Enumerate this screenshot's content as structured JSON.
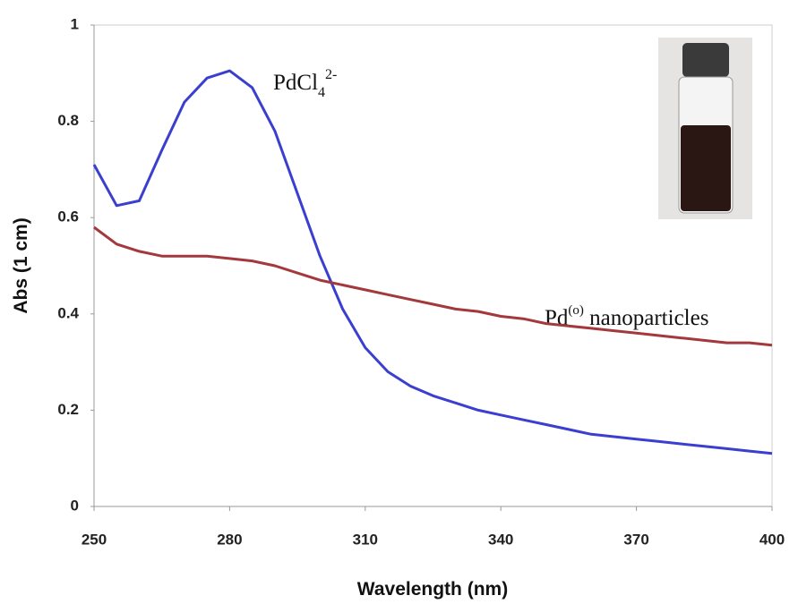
{
  "chart_data": {
    "type": "line",
    "xlabel": "Wavelength (nm)",
    "ylabel": "Abs (1 cm)",
    "x": [
      250,
      255,
      260,
      265,
      270,
      275,
      280,
      285,
      290,
      295,
      300,
      305,
      310,
      315,
      320,
      325,
      330,
      335,
      340,
      345,
      350,
      355,
      360,
      365,
      370,
      375,
      380,
      385,
      390,
      395,
      400
    ],
    "series": [
      {
        "color": "#3b3fcf",
        "values": [
          0.71,
          0.625,
          0.635,
          0.74,
          0.84,
          0.89,
          0.905,
          0.87,
          0.78,
          0.65,
          0.52,
          0.41,
          0.33,
          0.28,
          0.25,
          0.23,
          0.215,
          0.2,
          0.19,
          0.18,
          0.17,
          0.16,
          0.15,
          0.145,
          0.14,
          0.135,
          0.13,
          0.125,
          0.12,
          0.115,
          0.11
        ]
      },
      {
        "color": "#a3393c",
        "values": [
          0.58,
          0.545,
          0.53,
          0.52,
          0.52,
          0.52,
          0.515,
          0.51,
          0.5,
          0.485,
          0.47,
          0.46,
          0.45,
          0.44,
          0.43,
          0.42,
          0.41,
          0.405,
          0.395,
          0.39,
          0.38,
          0.375,
          0.37,
          0.365,
          0.36,
          0.355,
          0.35,
          0.345,
          0.34,
          0.34,
          0.335
        ]
      }
    ],
    "annotations": [
      {
        "text": "PdCl",
        "sub": "4",
        "sup": "2-"
      },
      {
        "text": "Pd",
        "sup": "(o)",
        "tail": " nanoparticles"
      }
    ],
    "xlim": [
      250,
      400
    ],
    "xticks": [
      250,
      280,
      310,
      340,
      370,
      400
    ],
    "ylim": [
      0,
      1
    ],
    "yticks": [
      0,
      0.2,
      0.4,
      0.6,
      0.8,
      1
    ]
  }
}
